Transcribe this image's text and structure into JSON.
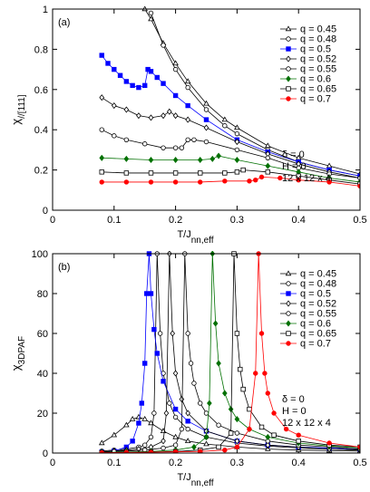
{
  "chart_data": [
    {
      "type": "line",
      "panel_label": "(a)",
      "ylabel": "χ",
      "ylabel_sub": "//[111]",
      "xlabel": "T/J",
      "xlabel_sub": "nn,eff",
      "annotations": [
        "δ = 0",
        "H = 0",
        "12 x 12 x 4"
      ],
      "xlim": [
        0,
        0.5
      ],
      "xticks": [
        0,
        0.1,
        0.2,
        0.3,
        0.4,
        0.5
      ],
      "ylim": [
        0,
        1
      ],
      "yticks": [
        0,
        0.2,
        0.4,
        0.6,
        0.8,
        1
      ],
      "legend": "upper right",
      "series": [
        {
          "name": "q = 0.45",
          "color": "#000000",
          "marker": "triangle",
          "filled": false,
          "x": [
            0.15,
            0.16,
            0.18,
            0.2,
            0.22,
            0.25,
            0.28,
            0.3,
            0.35,
            0.4,
            0.45,
            0.5
          ],
          "values": [
            1,
            0.95,
            0.83,
            0.73,
            0.64,
            0.53,
            0.45,
            0.41,
            0.32,
            0.26,
            0.22,
            0.18
          ]
        },
        {
          "name": "q = 0.48",
          "color": "#000000",
          "marker": "circle",
          "filled": false,
          "x": [
            0.16,
            0.18,
            0.2,
            0.22,
            0.25,
            0.28,
            0.3,
            0.35,
            0.4,
            0.45,
            0.5
          ],
          "values": [
            0.98,
            0.82,
            0.7,
            0.61,
            0.5,
            0.42,
            0.38,
            0.3,
            0.24,
            0.2,
            0.17
          ]
        },
        {
          "name": "q = 0.5",
          "color": "#0000ff",
          "marker": "square",
          "filled": true,
          "x": [
            0.08,
            0.09,
            0.1,
            0.11,
            0.12,
            0.13,
            0.14,
            0.15,
            0.155,
            0.16,
            0.17,
            0.18,
            0.2,
            0.22,
            0.25,
            0.3,
            0.35,
            0.4,
            0.45,
            0.5
          ],
          "values": [
            0.77,
            0.73,
            0.7,
            0.67,
            0.64,
            0.62,
            0.61,
            0.62,
            0.7,
            0.69,
            0.66,
            0.63,
            0.57,
            0.52,
            0.45,
            0.35,
            0.29,
            0.24,
            0.2,
            0.17
          ]
        },
        {
          "name": "q = 0.52",
          "color": "#000000",
          "marker": "diamond",
          "filled": false,
          "x": [
            0.08,
            0.1,
            0.12,
            0.14,
            0.16,
            0.18,
            0.19,
            0.2,
            0.22,
            0.25,
            0.3,
            0.35,
            0.4,
            0.45,
            0.5
          ],
          "values": [
            0.56,
            0.52,
            0.5,
            0.47,
            0.46,
            0.47,
            0.49,
            0.47,
            0.45,
            0.41,
            0.34,
            0.28,
            0.23,
            0.19,
            0.16
          ]
        },
        {
          "name": "q = 0.55",
          "color": "#000000",
          "marker": "circle",
          "filled": false,
          "x": [
            0.08,
            0.1,
            0.12,
            0.15,
            0.18,
            0.2,
            0.21,
            0.22,
            0.23,
            0.25,
            0.3,
            0.35,
            0.4,
            0.45,
            0.5
          ],
          "values": [
            0.4,
            0.37,
            0.35,
            0.33,
            0.31,
            0.31,
            0.31,
            0.35,
            0.35,
            0.34,
            0.3,
            0.26,
            0.21,
            0.18,
            0.16
          ]
        },
        {
          "name": "q = 0.6",
          "color": "#007000",
          "marker": "diamond",
          "filled": true,
          "x": [
            0.08,
            0.12,
            0.16,
            0.2,
            0.24,
            0.26,
            0.27,
            0.3,
            0.35,
            0.4,
            0.45,
            0.5
          ],
          "values": [
            0.26,
            0.255,
            0.25,
            0.25,
            0.25,
            0.255,
            0.27,
            0.25,
            0.22,
            0.19,
            0.16,
            0.14
          ]
        },
        {
          "name": "q = 0.65",
          "color": "#000000",
          "marker": "square",
          "filled": false,
          "x": [
            0.08,
            0.12,
            0.16,
            0.2,
            0.24,
            0.28,
            0.3,
            0.31,
            0.35,
            0.4,
            0.45,
            0.5
          ],
          "values": [
            0.19,
            0.185,
            0.185,
            0.185,
            0.185,
            0.185,
            0.19,
            0.2,
            0.19,
            0.17,
            0.15,
            0.13
          ]
        },
        {
          "name": "q = 0.7",
          "color": "#ff0000",
          "marker": "circle",
          "filled": true,
          "x": [
            0.08,
            0.12,
            0.16,
            0.2,
            0.24,
            0.28,
            0.32,
            0.33,
            0.34,
            0.37,
            0.4,
            0.45,
            0.5
          ],
          "values": [
            0.14,
            0.14,
            0.14,
            0.14,
            0.14,
            0.145,
            0.145,
            0.15,
            0.165,
            0.16,
            0.15,
            0.14,
            0.12
          ]
        }
      ]
    },
    {
      "type": "line",
      "panel_label": "(b)",
      "ylabel": "χ",
      "ylabel_sub": "3DPAF",
      "xlabel": "T/J",
      "xlabel_sub": "nn,eff",
      "annotations": [
        "δ = 0",
        "H = 0",
        "12 x 12 x 4"
      ],
      "xlim": [
        0,
        0.5
      ],
      "xticks": [
        0,
        0.1,
        0.2,
        0.3,
        0.4,
        0.5
      ],
      "ylim": [
        0,
        100
      ],
      "yticks": [
        0,
        20,
        40,
        60,
        80,
        100
      ],
      "legend": "upper right",
      "series": [
        {
          "name": "q = 0.45",
          "color": "#000000",
          "marker": "triangle",
          "filled": false,
          "x": [
            0.08,
            0.1,
            0.12,
            0.13,
            0.14,
            0.15,
            0.16,
            0.18,
            0.2,
            0.22,
            0.25,
            0.3,
            0.35,
            0.4,
            0.45,
            0.5
          ],
          "values": [
            5,
            9,
            14,
            17,
            18,
            17,
            15,
            11,
            8,
            6,
            4.5,
            3,
            2,
            1.5,
            1.2,
            1
          ]
        },
        {
          "name": "q = 0.48",
          "color": "#000000",
          "marker": "circle",
          "filled": false,
          "x": [
            0.08,
            0.1,
            0.12,
            0.14,
            0.15,
            0.16,
            0.165,
            0.17,
            0.175,
            0.18,
            0.19,
            0.2,
            0.22,
            0.25,
            0.3,
            0.35,
            0.4,
            0.45,
            0.5
          ],
          "values": [
            1,
            1.5,
            2,
            3,
            4,
            8,
            20,
            100,
            60,
            40,
            25,
            18,
            12,
            8,
            5,
            3.5,
            2.5,
            2,
            1.5
          ]
        },
        {
          "name": "q = 0.5",
          "color": "#0000ff",
          "marker": "square",
          "filled": true,
          "x": [
            0.08,
            0.1,
            0.12,
            0.13,
            0.14,
            0.145,
            0.15,
            0.153,
            0.157,
            0.16,
            0.165,
            0.17,
            0.18,
            0.2,
            0.22,
            0.25,
            0.3,
            0.35,
            0.4,
            0.45,
            0.5
          ],
          "values": [
            0.5,
            1,
            3,
            6,
            15,
            25,
            45,
            80,
            100,
            80,
            62,
            50,
            36,
            22,
            16,
            11,
            6,
            4,
            3,
            2.5,
            2
          ]
        },
        {
          "name": "q = 0.52",
          "color": "#000000",
          "marker": "diamond",
          "filled": false,
          "x": [
            0.08,
            0.1,
            0.12,
            0.14,
            0.16,
            0.18,
            0.185,
            0.19,
            0.195,
            0.2,
            0.21,
            0.22,
            0.25,
            0.3,
            0.35,
            0.4,
            0.45,
            0.5
          ],
          "values": [
            0.5,
            1,
            1.5,
            2,
            3,
            6,
            20,
            100,
            60,
            40,
            27,
            20,
            11,
            6,
            4,
            3,
            2,
            1.5
          ]
        },
        {
          "name": "q = 0.55",
          "color": "#000000",
          "marker": "circle",
          "filled": false,
          "x": [
            0.08,
            0.1,
            0.12,
            0.15,
            0.18,
            0.2,
            0.21,
            0.215,
            0.22,
            0.225,
            0.23,
            0.24,
            0.25,
            0.27,
            0.3,
            0.35,
            0.4,
            0.45,
            0.5
          ],
          "values": [
            0.5,
            0.8,
            1,
            1.5,
            2.5,
            4,
            12,
            100,
            60,
            45,
            35,
            25,
            20,
            14,
            10,
            6,
            4,
            3,
            2
          ]
        },
        {
          "name": "q = 0.6",
          "color": "#007000",
          "marker": "diamond",
          "filled": true,
          "x": [
            0.08,
            0.12,
            0.16,
            0.2,
            0.23,
            0.25,
            0.255,
            0.26,
            0.265,
            0.27,
            0.28,
            0.29,
            0.3,
            0.32,
            0.35,
            0.4,
            0.45,
            0.5
          ],
          "values": [
            0.3,
            0.5,
            0.8,
            1.5,
            3,
            8,
            25,
            100,
            65,
            45,
            30,
            22,
            17,
            12,
            8,
            5,
            3.5,
            2.5
          ]
        },
        {
          "name": "q = 0.65",
          "color": "#000000",
          "marker": "square",
          "filled": false,
          "x": [
            0.08,
            0.12,
            0.16,
            0.2,
            0.24,
            0.27,
            0.29,
            0.295,
            0.3,
            0.305,
            0.31,
            0.32,
            0.34,
            0.36,
            0.4,
            0.45,
            0.5
          ],
          "values": [
            0.2,
            0.3,
            0.5,
            0.8,
            1.5,
            3,
            10,
            100,
            60,
            42,
            32,
            22,
            13,
            9,
            6,
            4,
            3
          ]
        },
        {
          "name": "q = 0.7",
          "color": "#ff0000",
          "marker": "circle",
          "filled": true,
          "x": [
            0.08,
            0.12,
            0.16,
            0.2,
            0.24,
            0.28,
            0.3,
            0.32,
            0.33,
            0.335,
            0.34,
            0.345,
            0.35,
            0.36,
            0.38,
            0.4,
            0.45,
            0.5
          ],
          "values": [
            0.2,
            0.3,
            0.4,
            0.6,
            0.8,
            1.5,
            3,
            12,
            40,
            100,
            60,
            40,
            30,
            20,
            12,
            9,
            5,
            3
          ]
        }
      ]
    }
  ]
}
